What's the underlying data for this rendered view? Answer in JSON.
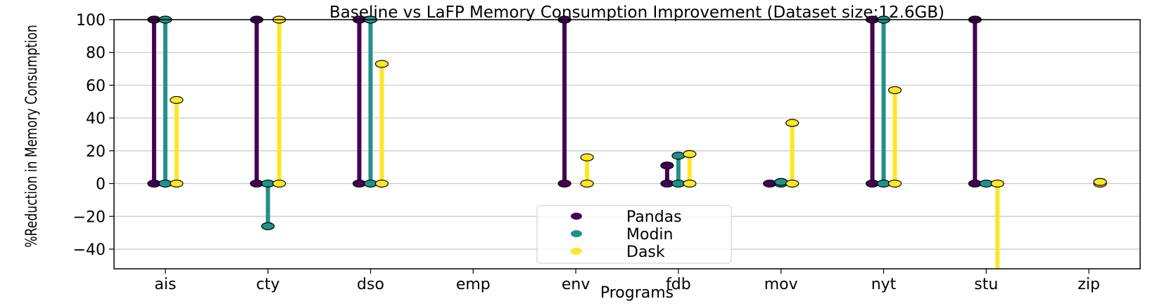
{
  "chart_data": {
    "type": "lollipop",
    "title": "Baseline vs LaFP Memory Consumption Improvement (Dataset size:12.6GB)",
    "xlabel": "Programs",
    "ylabel": "%Reduction in Memory Consumption",
    "categories": [
      "ais",
      "cty",
      "dso",
      "emp",
      "env",
      "fdb",
      "mov",
      "nyt",
      "stu",
      "zip"
    ],
    "ylim": [
      -52,
      100
    ],
    "yticks": [
      -40,
      -20,
      0,
      20,
      40,
      60,
      80,
      100
    ],
    "ytick_labels": [
      "−40",
      "−20",
      "0",
      "20",
      "40",
      "60",
      "80",
      "100"
    ],
    "grid": "horizontal",
    "legend_position": "bottom-center",
    "series": [
      {
        "name": "Pandas",
        "color": "#440154",
        "values": [
          100,
          100,
          100,
          null,
          100,
          11,
          0,
          100,
          100,
          null
        ]
      },
      {
        "name": "Modin",
        "color": "#21918c",
        "values": [
          100,
          -26,
          100,
          null,
          null,
          17,
          1,
          100,
          0,
          null
        ]
      },
      {
        "name": "Dask",
        "color": "#fde725",
        "values": [
          51,
          100,
          73,
          null,
          16,
          18,
          37,
          57,
          -52,
          1
        ]
      }
    ]
  }
}
